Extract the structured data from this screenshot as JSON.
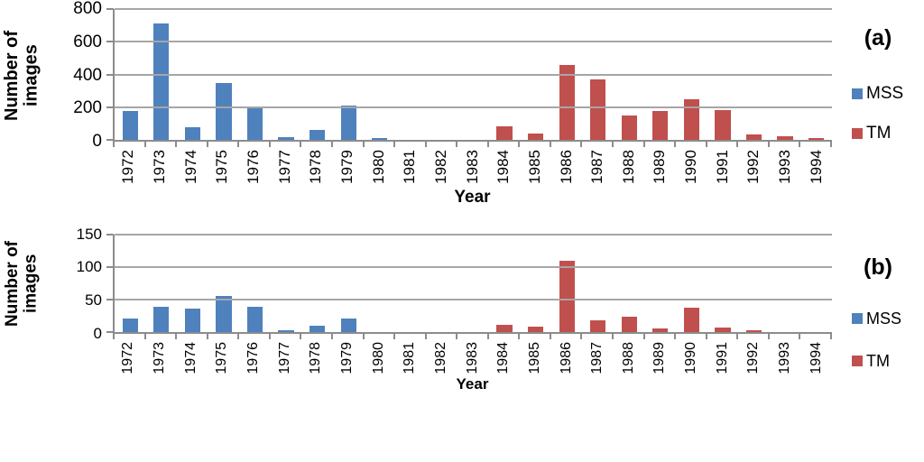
{
  "colors": {
    "mss_blue": "#4F81BD",
    "tm_red": "#C0504D",
    "gridline": "#A6A6A6",
    "axis_line": "#8C8C8C",
    "text": "#000000"
  },
  "chart_data": [
    {
      "type": "bar",
      "panel_label": "(a)",
      "ylabel": "Number of\nimages",
      "xlabel": "Year",
      "ylim": [
        0,
        800
      ],
      "yticks": [
        800,
        600,
        400,
        200,
        0
      ],
      "grid": true,
      "legend_position": "right",
      "categories": [
        "1972",
        "1973",
        "1974",
        "1975",
        "1976",
        "1977",
        "1978",
        "1979",
        "1980",
        "1981",
        "1982",
        "1983",
        "1984",
        "1985",
        "1986",
        "1987",
        "1988",
        "1989",
        "1990",
        "1991",
        "1992",
        "1993",
        "1994"
      ],
      "series": [
        {
          "name": "MSS",
          "color": "#4F81BD",
          "values": [
            175,
            710,
            75,
            350,
            200,
            15,
            60,
            210,
            10,
            0,
            0,
            0,
            0,
            0,
            0,
            0,
            0,
            0,
            0,
            0,
            0,
            0,
            0
          ]
        },
        {
          "name": "TM",
          "color": "#C0504D",
          "values": [
            0,
            0,
            0,
            0,
            0,
            0,
            0,
            0,
            0,
            0,
            0,
            0,
            85,
            40,
            460,
            370,
            150,
            175,
            250,
            180,
            35,
            20,
            10
          ]
        }
      ]
    },
    {
      "type": "bar",
      "panel_label": "(b)",
      "ylabel": "Number of\nimages",
      "xlabel": "Year",
      "ylim": [
        0,
        150
      ],
      "yticks": [
        150,
        100,
        50,
        0
      ],
      "grid": true,
      "legend_position": "right",
      "categories": [
        "1972",
        "1973",
        "1974",
        "1975",
        "1976",
        "1977",
        "1978",
        "1979",
        "1980",
        "1981",
        "1982",
        "1983",
        "1984",
        "1985",
        "1986",
        "1987",
        "1988",
        "1989",
        "1990",
        "1991",
        "1992",
        "1993",
        "1994"
      ],
      "series": [
        {
          "name": "MSS",
          "color": "#4F81BD",
          "values": [
            20,
            38,
            36,
            55,
            38,
            2,
            9,
            20,
            0,
            0,
            0,
            0,
            0,
            0,
            0,
            0,
            0,
            0,
            0,
            0,
            0,
            0,
            0
          ]
        },
        {
          "name": "TM",
          "color": "#C0504D",
          "values": [
            0,
            0,
            0,
            0,
            0,
            0,
            0,
            0,
            0,
            0,
            0,
            0,
            11,
            8,
            110,
            18,
            23,
            6,
            37,
            7,
            2,
            0,
            0
          ]
        }
      ]
    }
  ]
}
